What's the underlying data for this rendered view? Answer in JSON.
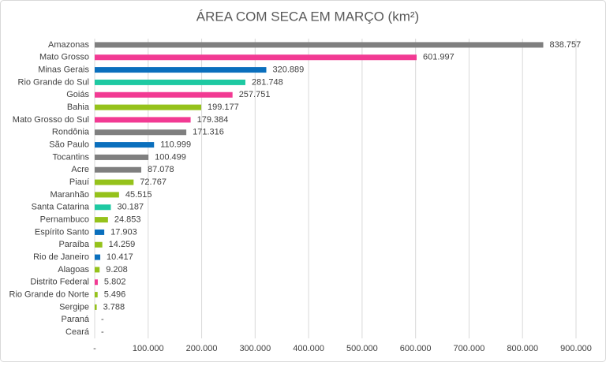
{
  "chart_data": {
    "type": "barh",
    "title": "ÁREA COM SECA EM MARÇO (km²)",
    "categories": [
      "Amazonas",
      "Mato Grosso",
      "Minas Gerais",
      "Rio Grande do Sul",
      "Goiás",
      "Bahia",
      "Mato Grosso do Sul",
      "Rondônia",
      "São Paulo",
      "Tocantins",
      "Acre",
      "Piauí",
      "Maranhão",
      "Santa Catarina",
      "Pernambuco",
      "Espírito Santo",
      "Paraíba",
      "Rio de Janeiro",
      "Alagoas",
      "Distrito Federal",
      "Rio Grande do Norte",
      "Sergipe",
      "Paraná",
      "Ceará"
    ],
    "values": [
      838757,
      601997,
      320889,
      281748,
      257751,
      199177,
      179384,
      171316,
      110999,
      100499,
      87078,
      72767,
      45515,
      30187,
      24853,
      17903,
      14259,
      10417,
      9208,
      5802,
      5496,
      3788,
      0,
      0
    ],
    "value_labels": [
      "838.757",
      "601.997",
      "320.889",
      "281.748",
      "257.751",
      "199.177",
      "179.384",
      "171.316",
      "110.999",
      "100.499",
      "87.078",
      "72.767",
      "45.515",
      "30.187",
      "24.853",
      "17.903",
      "14.259",
      "10.417",
      "9.208",
      "5.802",
      "5.496",
      "3.788",
      "-",
      "-"
    ],
    "colors": [
      "#7f7f7f",
      "#f23a93",
      "#0a6fbd",
      "#1ec9a2",
      "#f23a93",
      "#95c21b",
      "#f23a93",
      "#7f7f7f",
      "#0a6fbd",
      "#7f7f7f",
      "#7f7f7f",
      "#95c21b",
      "#95c21b",
      "#1ec9a2",
      "#95c21b",
      "#0a6fbd",
      "#95c21b",
      "#0a6fbd",
      "#95c21b",
      "#f23a93",
      "#95c21b",
      "#95c21b",
      "#1ec9a2",
      "#95c21b"
    ],
    "xlim": [
      0,
      900000
    ],
    "xticks": [
      {
        "value": 0,
        "label": "-"
      },
      {
        "value": 100000,
        "label": "100.000"
      },
      {
        "value": 200000,
        "label": "200.000"
      },
      {
        "value": 300000,
        "label": "300.000"
      },
      {
        "value": 400000,
        "label": "400.000"
      },
      {
        "value": 500000,
        "label": "500.000"
      },
      {
        "value": 600000,
        "label": "600.000"
      },
      {
        "value": 700000,
        "label": "700.000"
      },
      {
        "value": 800000,
        "label": "800.000"
      },
      {
        "value": 900000,
        "label": "900.000"
      }
    ],
    "grid": true
  }
}
